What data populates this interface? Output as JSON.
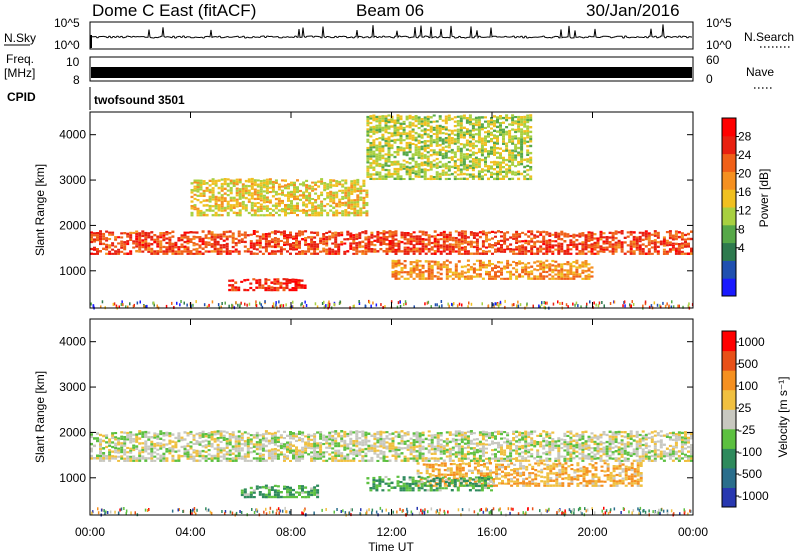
{
  "header": {
    "station": "Dome C East (fitACF)",
    "beam": "Beam 06",
    "date": "30/Jan/2016"
  },
  "top_panels": {
    "nsky_label": "N.Sky",
    "nsearch_label": "N.Search",
    "nsky_ticks": [
      "10^5",
      "10^0"
    ],
    "nsky_right_ticks": [
      "10^5",
      "10^0"
    ],
    "freq_label_1": "Freq.",
    "freq_label_2": "[MHz]",
    "freq_ticks": [
      "10",
      "8"
    ],
    "nave_label": "Nave",
    "nave_ticks": [
      "60",
      "0"
    ],
    "cpid_label": "CPID",
    "cpid_value": "twofsound 3501"
  },
  "power_panel": {
    "ylabel": "Slant Range [km]",
    "yticks": [
      "4000",
      "3000",
      "2000",
      "1000"
    ],
    "colorbar_label": "Power [dB]",
    "colorbar_ticks": [
      "28",
      "24",
      "20",
      "16",
      "12",
      "8",
      "4"
    ],
    "colors": [
      "#1a1aff",
      "#2050b0",
      "#2e7a4e",
      "#56a848",
      "#a8d040",
      "#f0c020",
      "#f59020",
      "#f06018",
      "#e82010",
      "#ff0000"
    ]
  },
  "velocity_panel": {
    "ylabel": "Slant Range [km]",
    "yticks": [
      "4000",
      "3000",
      "2000",
      "1000"
    ],
    "colorbar_label": "Velocity [m s⁻¹]",
    "colorbar_ticks": [
      "1000",
      "500",
      "100",
      "25",
      "-25",
      "-100",
      "-500",
      "-1000"
    ],
    "colors": [
      "#2838b0",
      "#2a6e8c",
      "#2e8a5c",
      "#5cc040",
      "#c8c8c0",
      "#f0c040",
      "#f59020",
      "#e85018",
      "#ff0000"
    ]
  },
  "x_axis": {
    "ticks": [
      "00:00",
      "04:00",
      "08:00",
      "12:00",
      "16:00",
      "20:00",
      "00:00"
    ],
    "label": "Time UT"
  },
  "chart_data": [
    {
      "type": "heatmap",
      "title": "Power",
      "xlabel": "Time UT",
      "ylabel": "Slant Range [km]",
      "xlim": [
        "00:00",
        "24:00"
      ],
      "ylim": [
        180,
        4500
      ],
      "colorbar": "Power [dB]",
      "clim": [
        0,
        30
      ],
      "bands": [
        {
          "t_start_h": 0,
          "t_end_h": 24,
          "range_km": [
            1350,
            1850
          ],
          "power_db": 24
        },
        {
          "t_start_h": 4,
          "t_end_h": 11,
          "range_km": [
            2200,
            3000
          ],
          "power_db": 16
        },
        {
          "t_start_h": 5.5,
          "t_end_h": 8.5,
          "range_km": [
            550,
            800
          ],
          "power_db": 26
        },
        {
          "t_start_h": 12,
          "t_end_h": 20,
          "range_km": [
            800,
            1200
          ],
          "power_db": 20
        },
        {
          "t_start_h": 11,
          "t_end_h": 17.5,
          "range_km": [
            3000,
            4400
          ],
          "power_db": 14
        }
      ]
    },
    {
      "type": "heatmap",
      "title": "Velocity",
      "xlabel": "Time UT",
      "ylabel": "Slant Range [km]",
      "xlim": [
        "00:00",
        "24:00"
      ],
      "ylim": [
        180,
        4500
      ],
      "colorbar": "Velocity [m s⁻¹]",
      "clim": [
        -1000,
        1000
      ],
      "bands": [
        {
          "t_start_h": 0,
          "t_end_h": 24,
          "range_km": [
            1350,
            2000
          ],
          "velocity": 0
        },
        {
          "t_start_h": 13,
          "t_end_h": 22,
          "range_km": [
            800,
            1300
          ],
          "velocity": 300
        },
        {
          "t_start_h": 6,
          "t_end_h": 9,
          "range_km": [
            550,
            800
          ],
          "velocity": -300
        },
        {
          "t_start_h": 11,
          "t_end_h": 16,
          "range_km": [
            700,
            1000
          ],
          "velocity": -300
        }
      ]
    }
  ]
}
